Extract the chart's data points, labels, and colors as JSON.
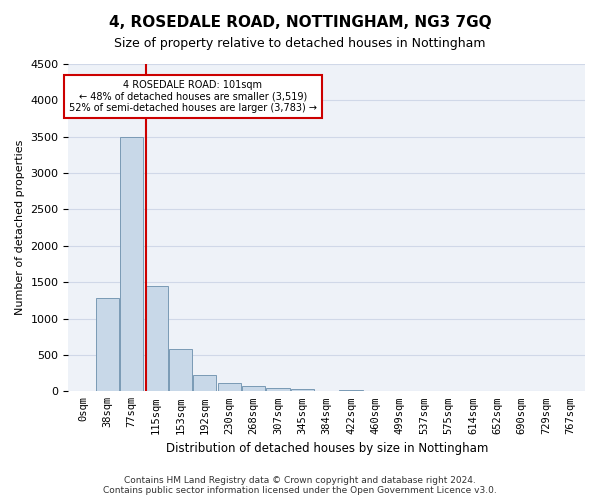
{
  "title": "4, ROSEDALE ROAD, NOTTINGHAM, NG3 7GQ",
  "subtitle": "Size of property relative to detached houses in Nottingham",
  "xlabel": "Distribution of detached houses by size in Nottingham",
  "ylabel": "Number of detached properties",
  "footer_line1": "Contains HM Land Registry data © Crown copyright and database right 2024.",
  "footer_line2": "Contains public sector information licensed under the Open Government Licence v3.0.",
  "bin_labels": [
    "0sqm",
    "38sqm",
    "77sqm",
    "115sqm",
    "153sqm",
    "192sqm",
    "230sqm",
    "268sqm",
    "307sqm",
    "345sqm",
    "384sqm",
    "422sqm",
    "460sqm",
    "499sqm",
    "537sqm",
    "575sqm",
    "614sqm",
    "652sqm",
    "690sqm",
    "729sqm",
    "767sqm"
  ],
  "bar_values": [
    10,
    1280,
    3500,
    1450,
    580,
    220,
    110,
    75,
    50,
    30,
    0,
    20,
    0,
    0,
    0,
    0,
    0,
    0,
    0,
    0,
    0
  ],
  "bar_color": "#c8d8e8",
  "bar_edgecolor": "#7a9ab5",
  "property_label": "4 ROSEDALE ROAD: 101sqm",
  "pct_smaller": 48,
  "n_smaller": 3519,
  "pct_larger": 52,
  "n_larger": 3783,
  "vline_color": "#cc0000",
  "vline_x_bin": 2.6,
  "annotation_box_color": "#cc0000",
  "ylim": [
    0,
    4500
  ],
  "yticks": [
    0,
    500,
    1000,
    1500,
    2000,
    2500,
    3000,
    3500,
    4000,
    4500
  ],
  "grid_color": "#d0d8e8",
  "background_color": "#eef2f8"
}
